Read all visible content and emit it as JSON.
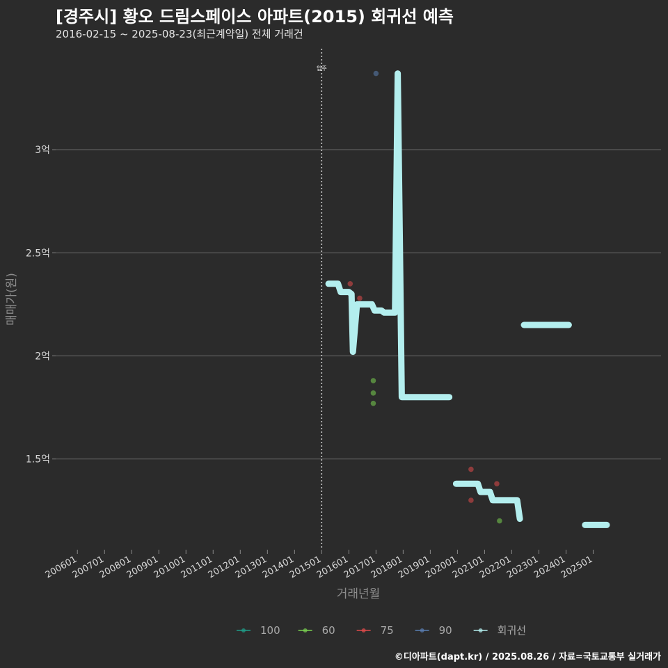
{
  "title": "[경주시] 황오 드림스페이스 아파트(2015) 회귀선 예측",
  "subtitle": "2016-02-15 ~ 2025-08-23(최근계약일) 전체 거래건",
  "caption": "©디아파트(dapt.kr) / 2025.08.26 / 자료=국토교통부 실거래가",
  "chart_data": {
    "type": "scatter",
    "xlabel": "거래년월",
    "ylabel": "매매가(원)",
    "x_unit": "year (decimal)",
    "y_unit": "억원",
    "xlim": [
      2005.2,
      2027.5
    ],
    "ylim": [
      1.06,
      3.49
    ],
    "x_ticks": [
      {
        "value": 2006,
        "label": "200601"
      },
      {
        "value": 2007,
        "label": "200701"
      },
      {
        "value": 2008,
        "label": "200801"
      },
      {
        "value": 2009,
        "label": "200901"
      },
      {
        "value": 2010,
        "label": "201001"
      },
      {
        "value": 2011,
        "label": "201101"
      },
      {
        "value": 2012,
        "label": "201201"
      },
      {
        "value": 2013,
        "label": "201301"
      },
      {
        "value": 2014,
        "label": "201401"
      },
      {
        "value": 2015,
        "label": "201501"
      },
      {
        "value": 2016,
        "label": "201601"
      },
      {
        "value": 2017,
        "label": "201701"
      },
      {
        "value": 2018,
        "label": "201801"
      },
      {
        "value": 2019,
        "label": "201901"
      },
      {
        "value": 2020,
        "label": "202001"
      },
      {
        "value": 2021,
        "label": "202101"
      },
      {
        "value": 2022,
        "label": "202201"
      },
      {
        "value": 2023,
        "label": "202301"
      },
      {
        "value": 2024,
        "label": "202401"
      },
      {
        "value": 2025,
        "label": "202501"
      }
    ],
    "y_ticks": [
      {
        "value": 1.5,
        "label": "1.5억"
      },
      {
        "value": 2.0,
        "label": "2억"
      },
      {
        "value": 2.5,
        "label": "2.5억"
      },
      {
        "value": 3.0,
        "label": "3억"
      }
    ],
    "annotation": {
      "label": "입주",
      "x": 2015.0
    },
    "legend": [
      {
        "name": "100",
        "color": "#1f9e89"
      },
      {
        "name": "60",
        "color": "#7ad151"
      },
      {
        "name": "75",
        "color": "#e04b4b"
      },
      {
        "name": "90",
        "color": "#5b7fb3"
      },
      {
        "name": "회귀선",
        "color": "#b3eeee"
      }
    ],
    "series": [
      {
        "name": "100",
        "color": "#1f9e89",
        "points": []
      },
      {
        "name": "60",
        "color": "#7ad151",
        "points": [
          {
            "x": 2016.9,
            "y": 1.88
          },
          {
            "x": 2016.9,
            "y": 1.82
          },
          {
            "x": 2016.9,
            "y": 1.77
          },
          {
            "x": 2021.55,
            "y": 1.2
          }
        ]
      },
      {
        "name": "75",
        "color": "#e04b4b",
        "points": [
          {
            "x": 2016.05,
            "y": 2.35
          },
          {
            "x": 2016.4,
            "y": 2.28
          },
          {
            "x": 2020.5,
            "y": 1.45
          },
          {
            "x": 2020.5,
            "y": 1.3
          },
          {
            "x": 2021.45,
            "y": 1.38
          }
        ]
      },
      {
        "name": "90",
        "color": "#5b7fb3",
        "points": [
          {
            "x": 2017.0,
            "y": 3.37
          }
        ]
      }
    ],
    "regression": {
      "name": "회귀선",
      "color": "#b3eeee",
      "segments": [
        [
          {
            "x": 2015.25,
            "y": 2.35
          },
          {
            "x": 2015.6,
            "y": 2.35
          },
          {
            "x": 2015.7,
            "y": 2.31
          },
          {
            "x": 2016.0,
            "y": 2.31
          },
          {
            "x": 2016.1,
            "y": 2.3
          },
          {
            "x": 2016.15,
            "y": 2.02
          },
          {
            "x": 2016.3,
            "y": 2.25
          },
          {
            "x": 2016.85,
            "y": 2.25
          },
          {
            "x": 2016.95,
            "y": 2.22
          },
          {
            "x": 2017.2,
            "y": 2.22
          },
          {
            "x": 2017.3,
            "y": 2.21
          },
          {
            "x": 2017.7,
            "y": 2.21
          },
          {
            "x": 2017.8,
            "y": 3.37
          },
          {
            "x": 2017.95,
            "y": 1.8
          },
          {
            "x": 2019.7,
            "y": 1.8
          }
        ],
        [
          {
            "x": 2019.95,
            "y": 1.38
          },
          {
            "x": 2020.75,
            "y": 1.38
          },
          {
            "x": 2020.85,
            "y": 1.34
          },
          {
            "x": 2021.2,
            "y": 1.34
          },
          {
            "x": 2021.3,
            "y": 1.3
          },
          {
            "x": 2022.2,
            "y": 1.3
          },
          {
            "x": 2022.3,
            "y": 1.21
          }
        ],
        [
          {
            "x": 2022.45,
            "y": 2.15
          },
          {
            "x": 2024.1,
            "y": 2.15
          }
        ],
        [
          {
            "x": 2024.7,
            "y": 1.18
          },
          {
            "x": 2025.5,
            "y": 1.18
          }
        ]
      ]
    }
  }
}
